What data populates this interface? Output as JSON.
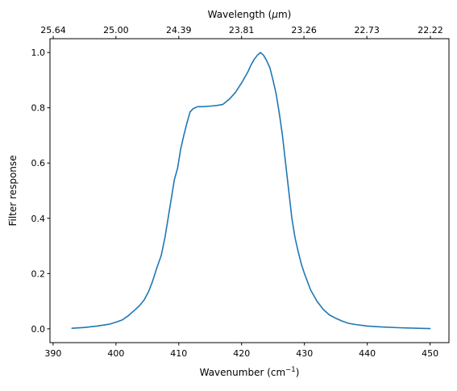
{
  "chart_data": {
    "type": "line",
    "xlabel": "Wavenumber (cm",
    "xlabel_sup": "−1",
    "xlabel_close": ")",
    "ylabel": "Filter response",
    "top_xlabel": "Wavelength (",
    "top_xlabel_mu": "μ",
    "top_xlabel_unit": "m)",
    "xlim": [
      389.5,
      453.0
    ],
    "ylim": [
      -0.05,
      1.05
    ],
    "x_ticks": [
      390,
      400,
      410,
      420,
      430,
      440,
      450
    ],
    "x_tick_labels": [
      "390",
      "400",
      "410",
      "420",
      "430",
      "440",
      "450"
    ],
    "y_ticks": [
      0.0,
      0.2,
      0.4,
      0.6,
      0.8,
      1.0
    ],
    "y_tick_labels": [
      "0.0",
      "0.2",
      "0.4",
      "0.6",
      "0.8",
      "1.0"
    ],
    "top_ticks": [
      {
        "wavenumber": 390.02,
        "label": "25.64"
      },
      {
        "wavenumber": 400.0,
        "label": "25.00"
      },
      {
        "wavenumber": 410.0,
        "label": "24.39"
      },
      {
        "wavenumber": 419.99,
        "label": "23.81"
      },
      {
        "wavenumber": 429.92,
        "label": "23.26"
      },
      {
        "wavenumber": 439.94,
        "label": "22.73"
      },
      {
        "wavenumber": 450.05,
        "label": "22.22"
      }
    ],
    "line_color": "#1f77b4",
    "grid": false,
    "series": [
      {
        "x": [
          393.0,
          395.0,
          397.0,
          399.0,
          400.0,
          401.0,
          402.0,
          403.0,
          403.8,
          404.5,
          405.2,
          405.8,
          406.5,
          407.2,
          407.8,
          408.3,
          408.8,
          409.3,
          409.8,
          410.3,
          410.8,
          411.3,
          411.8,
          412.3,
          413.0,
          414.0,
          415.0,
          416.0,
          417.0,
          418.0,
          419.0,
          420.0,
          420.5,
          421.0,
          421.5,
          422.0,
          422.5,
          423.0,
          423.5,
          424.0,
          424.5,
          425.0,
          425.5,
          426.0,
          426.5,
          427.0,
          427.5,
          428.0,
          428.5,
          429.0,
          429.5,
          430.0,
          431.0,
          432.0,
          433.0,
          434.0,
          435.0,
          436.0,
          437.0,
          438.0,
          440.0,
          442.0,
          445.0,
          448.0,
          450.0
        ],
        "y": [
          0.002,
          0.005,
          0.01,
          0.017,
          0.024,
          0.032,
          0.048,
          0.068,
          0.085,
          0.105,
          0.135,
          0.17,
          0.22,
          0.265,
          0.33,
          0.4,
          0.47,
          0.54,
          0.58,
          0.65,
          0.7,
          0.745,
          0.785,
          0.797,
          0.804,
          0.804,
          0.806,
          0.808,
          0.812,
          0.83,
          0.855,
          0.89,
          0.91,
          0.93,
          0.955,
          0.975,
          0.99,
          1.0,
          0.99,
          0.97,
          0.945,
          0.9,
          0.85,
          0.78,
          0.7,
          0.6,
          0.5,
          0.4,
          0.33,
          0.28,
          0.235,
          0.2,
          0.14,
          0.1,
          0.07,
          0.05,
          0.038,
          0.028,
          0.02,
          0.016,
          0.01,
          0.007,
          0.004,
          0.002,
          0.001
        ]
      }
    ]
  }
}
